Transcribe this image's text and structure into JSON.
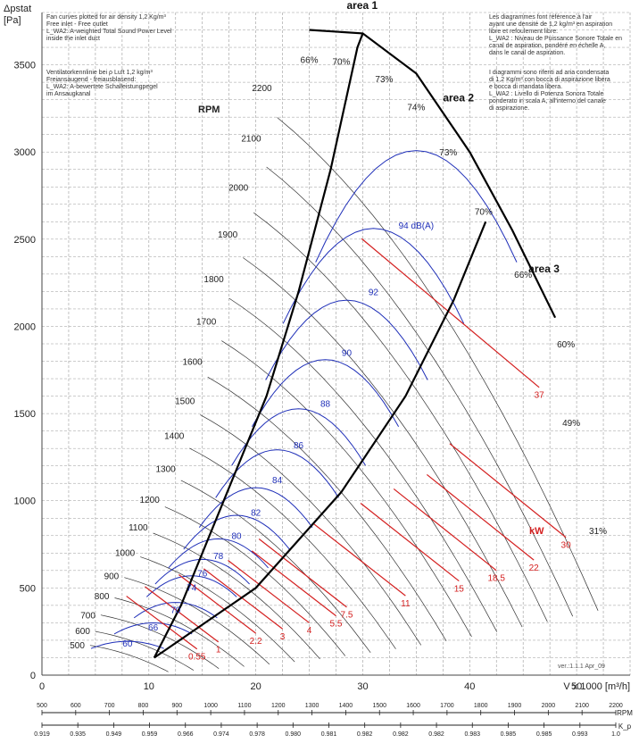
{
  "chart_data": {
    "type": "line",
    "title": "",
    "ylabel_top": "Δpstat",
    "ylabel_unit": "[Pa]",
    "xlabel": "V x 1000 [m³/h]",
    "xlim": [
      0,
      55
    ],
    "ylim": [
      0,
      3800
    ],
    "x_ticks": [
      0,
      10,
      20,
      30,
      40,
      50
    ],
    "y_ticks": [
      0,
      500,
      1000,
      1500,
      2000,
      2500,
      3000,
      3500
    ],
    "grid": true,
    "series": [
      {
        "name": "area 1",
        "values": [
          {
            "x": 10.5,
            "y": 100
          },
          {
            "x": 13,
            "y": 400
          },
          {
            "x": 17,
            "y": 1000
          },
          {
            "x": 21,
            "y": 1600
          },
          {
            "x": 24,
            "y": 2200
          },
          {
            "x": 27,
            "y": 2900
          },
          {
            "x": 29.5,
            "y": 3600
          },
          {
            "x": 30,
            "y": 3680
          }
        ]
      },
      {
        "name": "area 2",
        "values": [
          {
            "x": 25,
            "y": 3700
          },
          {
            "x": 30,
            "y": 3680
          },
          {
            "x": 35,
            "y": 3450
          },
          {
            "x": 40,
            "y": 3000
          },
          {
            "x": 44,
            "y": 2550
          },
          {
            "x": 48,
            "y": 2050
          }
        ]
      },
      {
        "name": "area 3",
        "values": [
          {
            "x": 10.5,
            "y": 100
          },
          {
            "x": 20,
            "y": 500
          },
          {
            "x": 28,
            "y": 1050
          },
          {
            "x": 34,
            "y": 1600
          },
          {
            "x": 38.5,
            "y": 2150
          },
          {
            "x": 41.5,
            "y": 2600
          }
        ]
      }
    ],
    "rpm_labels": [
      {
        "rpm": "500",
        "x": 4.5,
        "y": 175
      },
      {
        "rpm": "600",
        "x": 5,
        "y": 255
      },
      {
        "rpm": "700",
        "x": 5.5,
        "y": 345
      },
      {
        "rpm": "800",
        "x": 6.8,
        "y": 455
      },
      {
        "rpm": "900",
        "x": 7.7,
        "y": 570
      },
      {
        "rpm": "1000",
        "x": 9.2,
        "y": 705
      },
      {
        "rpm": "1100",
        "x": 10.4,
        "y": 850
      },
      {
        "rpm": "1200",
        "x": 11.5,
        "y": 1010
      },
      {
        "rpm": "1300",
        "x": 13,
        "y": 1185
      },
      {
        "rpm": "1400",
        "x": 13.8,
        "y": 1375
      },
      {
        "rpm": "1500",
        "x": 14.8,
        "y": 1575
      },
      {
        "rpm": "1600",
        "x": 15.5,
        "y": 1800
      },
      {
        "rpm": "1700",
        "x": 16.8,
        "y": 2030
      },
      {
        "rpm": "1800",
        "x": 17.5,
        "y": 2275
      },
      {
        "rpm": "1900",
        "x": 18.8,
        "y": 2530
      },
      {
        "rpm": "2000",
        "x": 19.8,
        "y": 2800
      },
      {
        "rpm": "2100",
        "x": 21,
        "y": 3080
      },
      {
        "rpm": "2200",
        "x": 22,
        "y": 3370
      }
    ],
    "efficiency_labels": [
      {
        "label": "66%",
        "x": 25,
        "y": 3510
      },
      {
        "label": "70%",
        "x": 28,
        "y": 3500
      },
      {
        "label": "73%",
        "x": 32,
        "y": 3400
      },
      {
        "label": "74%",
        "x": 35,
        "y": 3240
      },
      {
        "label": "73%",
        "x": 38,
        "y": 2980
      },
      {
        "label": "70%",
        "x": 41.3,
        "y": 2640
      },
      {
        "label": "66%",
        "x": 45,
        "y": 2280
      },
      {
        "label": "60%",
        "x": 49,
        "y": 1880
      },
      {
        "label": "49%",
        "x": 49.5,
        "y": 1430
      },
      {
        "label": "31%",
        "x": 52,
        "y": 810
      }
    ],
    "sound_labels": [
      {
        "label": "94 dB(A)",
        "x": 35,
        "y": 2560
      },
      {
        "label": "92",
        "x": 31,
        "y": 2180
      },
      {
        "label": "90",
        "x": 28.5,
        "y": 1830
      },
      {
        "label": "88",
        "x": 26.5,
        "y": 1540
      },
      {
        "label": "86",
        "x": 24,
        "y": 1300
      },
      {
        "label": "84",
        "x": 22,
        "y": 1100
      },
      {
        "label": "82",
        "x": 20,
        "y": 915
      },
      {
        "label": "80",
        "x": 18.2,
        "y": 780
      },
      {
        "label": "78",
        "x": 16.5,
        "y": 665
      },
      {
        "label": "76",
        "x": 15,
        "y": 565
      },
      {
        "label": "74",
        "x": 14,
        "y": 485
      },
      {
        "label": "70",
        "x": 12.5,
        "y": 355
      },
      {
        "label": "66",
        "x": 10.4,
        "y": 255
      },
      {
        "label": "60",
        "x": 8,
        "y": 165
      }
    ],
    "power_labels": [
      {
        "label": "0.55",
        "x": 14.5,
        "y": 90
      },
      {
        "label": "1",
        "x": 16.5,
        "y": 130
      },
      {
        "label": "2.2",
        "x": 20,
        "y": 180
      },
      {
        "label": "3",
        "x": 22.5,
        "y": 205
      },
      {
        "label": "4",
        "x": 25,
        "y": 240
      },
      {
        "label": "5.5",
        "x": 27.5,
        "y": 280
      },
      {
        "label": "7.5",
        "x": 28.5,
        "y": 330
      },
      {
        "label": "11",
        "x": 34,
        "y": 395
      },
      {
        "label": "15",
        "x": 39,
        "y": 480
      },
      {
        "label": "18.5",
        "x": 42.5,
        "y": 540
      },
      {
        "label": "22",
        "x": 46,
        "y": 600
      },
      {
        "label": "30",
        "x": 49,
        "y": 730
      },
      {
        "label": "37",
        "x": 46.5,
        "y": 1590
      }
    ],
    "area_labels": [
      {
        "label": "area 1",
        "x": 28.5,
        "y": 3820
      },
      {
        "label": "area 2",
        "x": 37.5,
        "y": 3290
      },
      {
        "label": "area 3",
        "x": 45.5,
        "y": 2310
      }
    ]
  },
  "header_texts": {
    "rpm_title": "RPM",
    "kw_title": "kW",
    "version": "ver.:1.1.1 Apr_09"
  },
  "notes": {
    "en": "Fan curves plotted for air density 1,2 Kg/m³\nFree inlet - Free outlet\nL_WA2: A-weighted Total Sound Power Level\ninside the inlet duct",
    "de": "Ventilatorkennlinie bei ρ Luft 1,2 kg/m³\nFreiansaugend - freiausblasend:\nL_WA2: A-bewertete Schalleistungpegel\nim Ansaugkanal",
    "fr": "Les diagrammes font référence à l'air\nayant une densité de 1,2 kg/m³ en aspiration\nlibre et refoulement libre.\nL_WA2 : Niveau de Puissance Sonore Totale en\ncanal de aspiration, pondéré en échelle A,\ndans le canal de aspiration.",
    "it": "I diagrammi sono riferiti ad aria condensata\ndi 1,2 Kg/m³ con bocca di aspirazione libera\ne bocca di mandata libera.\nL_WA2 : Livello di Potenza Sonora Totale\nponderato in scala A, all'interno del canale\ndi aspirazione."
  },
  "rpm_axis": {
    "label": "RPM",
    "ticks": [
      "500",
      "600",
      "700",
      "800",
      "900",
      "1000",
      "1100",
      "1200",
      "1300",
      "1400",
      "1500",
      "1600",
      "1700",
      "1800",
      "1900",
      "2000",
      "2100",
      "2200"
    ]
  },
  "kp_axis": {
    "label": "K_p",
    "ticks": [
      "0.919",
      "0.935",
      "0.949",
      "0.959",
      "0.966",
      "0.974",
      "0.978",
      "0.980",
      "0.981",
      "0.982",
      "0.982",
      "0.982",
      "0.983",
      "0.985",
      "0.985",
      "0.993",
      "1.0"
    ]
  },
  "colors": {
    "blue": "#1f2fb8",
    "red": "#d42020",
    "black": "#000000",
    "grid": "#9a9a9a",
    "gray_curve": "#777777"
  }
}
